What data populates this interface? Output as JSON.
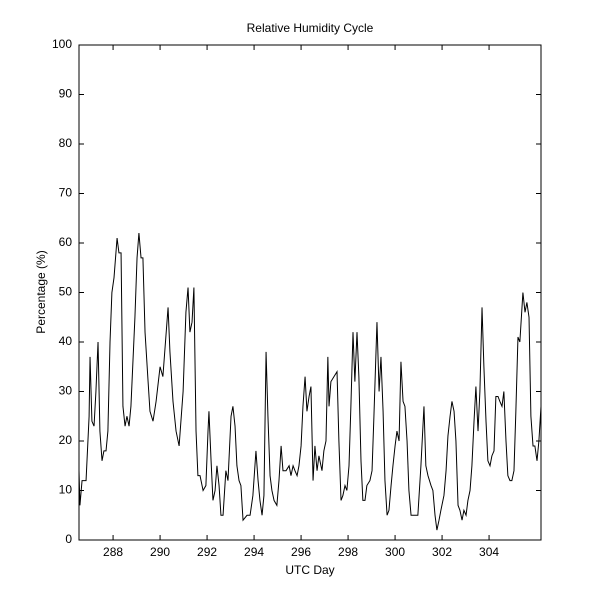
{
  "chart_data": {
    "type": "line",
    "title": "Relative Humidity Cycle",
    "x_label": "UTC Day",
    "y_label": "Percentage (%)",
    "x": [
      286.55,
      286.59,
      286.68,
      286.85,
      286.98,
      287.02,
      287.1,
      287.19,
      287.27,
      287.36,
      287.44,
      287.53,
      287.61,
      287.7,
      287.78,
      287.87,
      287.95,
      288.04,
      288.17,
      288.25,
      288.34,
      288.42,
      288.51,
      288.59,
      288.68,
      288.76,
      288.93,
      289.02,
      289.1,
      289.19,
      289.27,
      289.36,
      289.49,
      289.57,
      289.7,
      289.83,
      290.0,
      290.12,
      290.34,
      290.42,
      290.55,
      290.68,
      290.81,
      290.98,
      291.1,
      291.19,
      291.27,
      291.36,
      291.44,
      291.53,
      291.61,
      291.7,
      291.83,
      291.95,
      292.04,
      292.08,
      292.17,
      292.25,
      292.34,
      292.42,
      292.51,
      292.59,
      292.68,
      292.8,
      292.89,
      293.02,
      293.1,
      293.19,
      293.27,
      293.36,
      293.44,
      293.53,
      293.7,
      293.83,
      293.95,
      294.08,
      294.17,
      294.25,
      294.34,
      294.42,
      294.51,
      294.59,
      294.68,
      294.76,
      294.85,
      294.97,
      295.06,
      295.15,
      295.23,
      295.36,
      295.49,
      295.57,
      295.66,
      295.74,
      295.83,
      295.91,
      296.0,
      296.08,
      296.17,
      296.25,
      296.34,
      296.42,
      296.51,
      296.59,
      296.68,
      296.76,
      296.89,
      296.97,
      297.06,
      297.14,
      297.19,
      297.27,
      297.4,
      297.53,
      297.61,
      297.7,
      297.78,
      297.87,
      297.95,
      298.04,
      298.12,
      298.21,
      298.29,
      298.38,
      298.46,
      298.55,
      298.63,
      298.72,
      298.8,
      298.93,
      299.02,
      299.1,
      299.23,
      299.32,
      299.4,
      299.49,
      299.57,
      299.66,
      299.74,
      299.83,
      299.91,
      300.0,
      300.08,
      300.17,
      300.25,
      300.34,
      300.42,
      300.51,
      300.59,
      300.68,
      300.85,
      300.97,
      301.1,
      301.23,
      301.31,
      301.4,
      301.53,
      301.61,
      301.7,
      301.78,
      301.87,
      301.95,
      302.08,
      302.17,
      302.25,
      302.34,
      302.42,
      302.51,
      302.59,
      302.68,
      302.76,
      302.85,
      302.93,
      303.02,
      303.1,
      303.19,
      303.27,
      303.36,
      303.44,
      303.53,
      303.61,
      303.7,
      303.78,
      303.87,
      303.95,
      304.04,
      304.12,
      304.21,
      304.29,
      304.38,
      304.46,
      304.55,
      304.63,
      304.72,
      304.8,
      304.89,
      304.97,
      305.06,
      305.14,
      305.23,
      305.31,
      305.44,
      305.53,
      305.61,
      305.7,
      305.78,
      305.87,
      305.95,
      306.04,
      306.12,
      306.21
    ],
    "values": [
      14,
      7,
      12,
      12,
      25,
      37,
      24,
      23,
      30,
      40,
      22,
      16,
      18,
      18,
      22,
      40,
      50,
      53,
      61,
      58,
      58,
      27,
      23,
      25,
      23,
      27,
      45,
      57,
      62,
      57,
      57,
      42,
      32,
      26,
      24,
      28,
      35,
      33,
      47,
      38,
      28,
      22,
      19,
      30,
      46,
      51,
      42,
      44,
      51,
      22,
      13,
      13,
      10,
      11,
      22,
      26,
      16,
      8,
      10,
      15,
      11,
      5,
      5,
      14,
      12,
      25,
      27,
      23,
      15,
      12,
      11,
      4,
      5,
      5,
      9,
      18,
      12,
      8,
      5,
      9,
      38,
      25,
      13,
      10,
      8,
      7,
      12,
      19,
      14,
      14,
      15,
      13,
      15,
      14,
      13,
      15,
      19,
      27,
      33,
      26,
      29,
      31,
      12,
      19,
      14,
      17,
      14,
      18,
      20,
      37,
      27,
      32,
      33,
      34,
      20,
      8,
      9,
      11,
      10,
      15,
      27,
      42,
      32,
      42,
      33,
      16,
      8,
      8,
      11,
      12,
      14,
      25,
      44,
      30,
      37,
      26,
      12,
      5,
      6,
      11,
      15,
      19,
      22,
      20,
      36,
      28,
      27,
      20,
      10,
      5,
      5,
      5,
      15,
      27,
      15,
      13,
      11,
      10,
      5,
      2,
      4,
      6,
      9,
      14,
      21,
      25,
      28,
      26,
      20,
      7,
      6,
      4,
      6,
      5,
      8,
      10,
      15,
      24,
      31,
      22,
      30,
      47,
      35,
      24,
      16,
      15,
      17,
      18,
      29,
      29,
      28,
      27,
      30,
      20,
      13,
      12,
      12,
      14,
      26,
      41,
      40,
      50,
      46,
      48,
      45,
      25,
      19,
      19,
      16,
      20,
      27
    ],
    "color": "#000000",
    "xlim": [
      286.55,
      306.21
    ],
    "xticks": [
      288,
      290,
      292,
      294,
      296,
      298,
      300,
      302,
      304
    ],
    "ylim": [
      0,
      100
    ],
    "yticks": [
      0,
      10,
      20,
      30,
      40,
      50,
      60,
      70,
      80,
      90,
      100
    ],
    "grid": false
  }
}
